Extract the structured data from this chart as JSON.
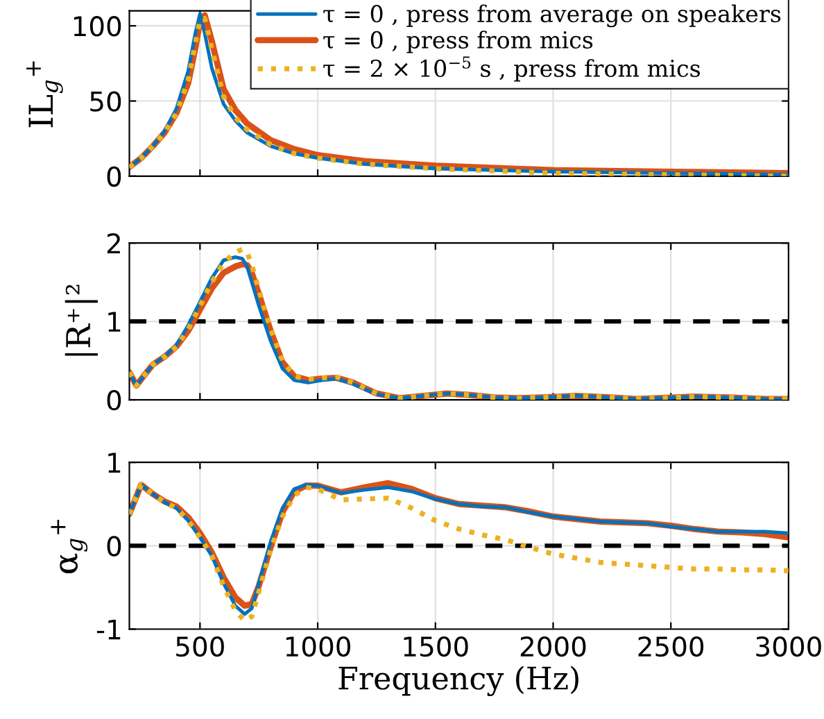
{
  "chart_data": [
    {
      "type": "line",
      "ylabel": "IL$_{g}$$^{+}$",
      "xlim": [
        200,
        3000
      ],
      "xticks": [
        500,
        1000,
        1500,
        2000,
        2500,
        3000
      ],
      "ylim": [
        0,
        110
      ],
      "yticks": [
        0,
        50,
        100
      ],
      "grid": true,
      "legend": "top right",
      "tick_labels": "y",
      "x": [
        200,
        250,
        300,
        350,
        400,
        450,
        480,
        500,
        520,
        550,
        600,
        650,
        700,
        800,
        900,
        1000,
        1200,
        1500,
        2000,
        2500,
        3000
      ],
      "series": [
        {
          "name": "τ = 0 , press from average on speakers",
          "color": "#0072bd",
          "line_style": "solid",
          "values": [
            6,
            12,
            20,
            30,
            45,
            70,
            95,
            108,
            95,
            72,
            48,
            37,
            29,
            20,
            15,
            12,
            8,
            5,
            3,
            2,
            1
          ]
        },
        {
          "name": "τ = 0 , press from mics",
          "color": "#d95319",
          "line_style": "solid",
          "values": [
            6,
            12,
            20,
            29,
            42,
            62,
            85,
            103,
            107,
            90,
            58,
            44,
            35,
            24,
            18,
            14,
            10,
            7,
            4,
            3,
            2
          ]
        },
        {
          "name": "τ = 2 × 10$^{−5}$ s , press from mics",
          "color": "#edb120",
          "line_style": "dotted",
          "values": [
            6,
            12,
            20,
            29,
            42,
            64,
            88,
            104,
            105,
            85,
            53,
            39,
            31,
            21,
            15,
            12,
            8,
            5,
            2,
            1,
            0
          ]
        }
      ]
    },
    {
      "type": "line",
      "ylabel": "|R⁺|²",
      "xlim": [
        200,
        3000
      ],
      "xticks": [
        500,
        1000,
        1500,
        2000,
        2500,
        3000
      ],
      "ylim": [
        0,
        2
      ],
      "yticks": [
        0,
        1,
        2
      ],
      "grid": true,
      "tick_labels": "y",
      "ref_lines": [
        {
          "axis": "y",
          "value": 1,
          "color": "#000000",
          "line_style": "dashed"
        }
      ],
      "x": [
        200,
        230,
        260,
        300,
        350,
        400,
        450,
        500,
        550,
        600,
        650,
        680,
        700,
        720,
        750,
        800,
        850,
        900,
        960,
        1020,
        1080,
        1150,
        1250,
        1350,
        1450,
        1550,
        1650,
        1750,
        1850,
        1950,
        2100,
        2250,
        2350,
        2450,
        2600,
        2750,
        2900,
        3000
      ],
      "series": [
        {
          "color": "#0072bd",
          "line_style": "solid",
          "values": [
            0.35,
            0.18,
            0.3,
            0.45,
            0.55,
            0.7,
            0.95,
            1.25,
            1.55,
            1.78,
            1.82,
            1.8,
            1.7,
            1.5,
            1.2,
            0.75,
            0.4,
            0.25,
            0.22,
            0.25,
            0.27,
            0.2,
            0.07,
            0.02,
            0.05,
            0.08,
            0.06,
            0.03,
            0.02,
            0.03,
            0.05,
            0.03,
            0.01,
            0.02,
            0.04,
            0.03,
            0.01,
            0.01
          ]
        },
        {
          "color": "#d95319",
          "line_style": "solid",
          "values": [
            0.35,
            0.18,
            0.3,
            0.45,
            0.55,
            0.68,
            0.88,
            1.15,
            1.42,
            1.62,
            1.7,
            1.73,
            1.72,
            1.62,
            1.35,
            0.88,
            0.48,
            0.3,
            0.25,
            0.27,
            0.28,
            0.22,
            0.08,
            0.02,
            0.05,
            0.08,
            0.06,
            0.03,
            0.02,
            0.03,
            0.05,
            0.03,
            0.01,
            0.02,
            0.04,
            0.03,
            0.01,
            0.01
          ]
        },
        {
          "color": "#edb120",
          "line_style": "dotted",
          "values": [
            0.35,
            0.18,
            0.3,
            0.45,
            0.55,
            0.68,
            0.9,
            1.2,
            1.5,
            1.75,
            1.88,
            1.92,
            1.88,
            1.72,
            1.4,
            0.9,
            0.5,
            0.3,
            0.26,
            0.28,
            0.29,
            0.22,
            0.08,
            0.02,
            0.05,
            0.08,
            0.06,
            0.03,
            0.02,
            0.03,
            0.05,
            0.03,
            0.01,
            0.02,
            0.04,
            0.03,
            0.01,
            0.01
          ]
        }
      ]
    },
    {
      "type": "line",
      "ylabel": "α$_{g}$$^{+}$",
      "xlabel": "Frequency (Hz)",
      "xlim": [
        200,
        3000
      ],
      "xticks": [
        500,
        1000,
        1500,
        2000,
        2500,
        3000
      ],
      "ylim": [
        -1,
        1
      ],
      "yticks": [
        -1,
        0,
        1
      ],
      "grid": true,
      "ref_lines": [
        {
          "axis": "y",
          "value": 0,
          "color": "#000000",
          "line_style": "dashed"
        }
      ],
      "x": [
        200,
        250,
        300,
        350,
        400,
        450,
        500,
        550,
        600,
        650,
        690,
        720,
        750,
        800,
        850,
        900,
        950,
        1000,
        1100,
        1200,
        1300,
        1400,
        1500,
        1600,
        1700,
        1800,
        1900,
        2000,
        2200,
        2400,
        2500,
        2600,
        2700,
        2800,
        2900,
        3000
      ],
      "series": [
        {
          "color": "#0072bd",
          "line_style": "solid",
          "values": [
            0.38,
            0.73,
            0.62,
            0.52,
            0.45,
            0.3,
            0.1,
            -0.12,
            -0.45,
            -0.72,
            -0.82,
            -0.75,
            -0.45,
            0.05,
            0.45,
            0.68,
            0.73,
            0.72,
            0.63,
            0.67,
            0.7,
            0.65,
            0.56,
            0.5,
            0.47,
            0.46,
            0.4,
            0.35,
            0.29,
            0.27,
            0.23,
            0.2,
            0.17,
            0.17,
            0.17,
            0.15
          ]
        },
        {
          "color": "#d95319",
          "line_style": "solid",
          "values": [
            0.38,
            0.73,
            0.62,
            0.53,
            0.47,
            0.34,
            0.15,
            -0.08,
            -0.38,
            -0.62,
            -0.72,
            -0.7,
            -0.48,
            -0.02,
            0.4,
            0.65,
            0.72,
            0.72,
            0.64,
            0.7,
            0.75,
            0.68,
            0.57,
            0.5,
            0.48,
            0.46,
            0.41,
            0.35,
            0.29,
            0.27,
            0.24,
            0.2,
            0.17,
            0.16,
            0.14,
            0.1
          ]
        },
        {
          "color": "#edb120",
          "line_style": "dotted",
          "values": [
            0.38,
            0.73,
            0.62,
            0.52,
            0.45,
            0.3,
            0.1,
            -0.12,
            -0.48,
            -0.78,
            -0.9,
            -0.85,
            -0.55,
            -0.05,
            0.35,
            0.6,
            0.7,
            0.68,
            0.55,
            0.56,
            0.57,
            0.45,
            0.3,
            0.2,
            0.13,
            0.07,
            -0.02,
            -0.1,
            -0.2,
            -0.24,
            -0.26,
            -0.28,
            -0.28,
            -0.29,
            -0.29,
            -0.3
          ]
        }
      ]
    }
  ]
}
